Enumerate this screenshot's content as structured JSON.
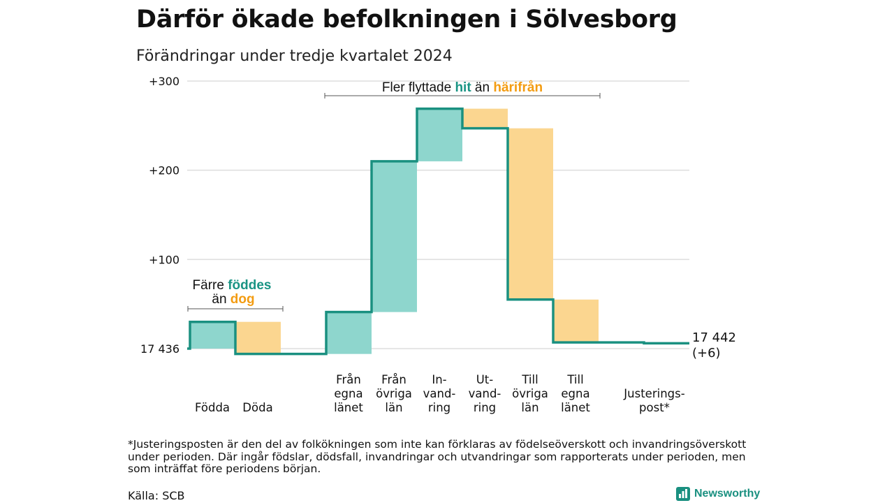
{
  "title": "Därför ökade befolkningen i Sölvesborg",
  "subtitle": "Förändringar under tredje kvartalet 2024",
  "footnote": "*Justeringsposten är den del av folkökningen som inte kan förklaras av födelseöverskott och invandringsöverskott under perioden. Där ingår födslar, dödsfall, invandringar och utvandringar som rapporterats under perioden, men som inträffat före periodens början.",
  "source": "Källa: SCB",
  "brand": "Newsworthy",
  "colors": {
    "increase": "#8ed6cd",
    "decrease": "#fbd690",
    "line": "#1a9080",
    "accent_teal": "#1a9484",
    "accent_orange": "#f39c12",
    "grid": "#dddddd"
  },
  "annotations": {
    "migration": {
      "pre": "Fler flyttade ",
      "hit": "hit",
      "mid": " än ",
      "harifran": "härifrån"
    },
    "births": {
      "pre": "Färre ",
      "foddes": "föddes",
      "an": "än ",
      "dog": "dog"
    }
  },
  "chart_data": {
    "type": "waterfall",
    "title": "Därför ökade befolkningen i Sölvesborg",
    "subtitle": "Förändringar under tredje kvartalet 2024",
    "ylim": [
      -8,
      300
    ],
    "yticks": [
      {
        "value": 300,
        "label": "+300"
      },
      {
        "value": 200,
        "label": "+200"
      },
      {
        "value": 100,
        "label": "+100"
      },
      {
        "value": 0,
        "label": "17 436"
      }
    ],
    "start_value": 17436,
    "end_label_1": "17 442",
    "end_label_2": "(+6)",
    "categories": [
      {
        "label_lines": [
          "Födda"
        ],
        "change": 30,
        "start": 0,
        "end": 30
      },
      {
        "label_lines": [
          "Döda"
        ],
        "change": -36,
        "start": 30,
        "end": -6
      },
      {
        "label_lines": [
          "Från",
          "egna",
          "länet"
        ],
        "change": 47,
        "start": -6,
        "end": 41
      },
      {
        "label_lines": [
          "Från",
          "övriga",
          "län"
        ],
        "change": 169,
        "start": 41,
        "end": 210
      },
      {
        "label_lines": [
          "In-",
          "vand-",
          "ring"
        ],
        "change": 59,
        "start": 210,
        "end": 269
      },
      {
        "label_lines": [
          "Ut-",
          "vand-",
          "ring"
        ],
        "change": -22,
        "start": 269,
        "end": 247
      },
      {
        "label_lines": [
          "Till",
          "övriga",
          "län"
        ],
        "change": -192,
        "start": 247,
        "end": 55
      },
      {
        "label_lines": [
          "Till",
          "egna",
          "länet"
        ],
        "change": -48,
        "start": 55,
        "end": 7
      },
      {
        "label_lines": [
          "Justerings-",
          "post*"
        ],
        "change": -1,
        "start": 7,
        "end": 6
      }
    ]
  }
}
